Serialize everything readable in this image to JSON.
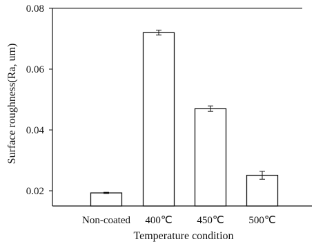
{
  "chart_data": {
    "type": "bar",
    "categories": [
      "Non-coated",
      "400℃",
      "450℃",
      "500℃"
    ],
    "values": [
      0.0193,
      0.072,
      0.047,
      0.0251
    ],
    "errors": [
      0.0002,
      0.0008,
      0.0009,
      0.0013
    ],
    "xlabel": "Temperature condition",
    "ylabel": "Surface roughness(Ra, um)",
    "ylim": [
      0.015,
      0.08
    ],
    "yticks": [
      0.02,
      0.04,
      0.06,
      0.08
    ],
    "ytick_labels": [
      "0.02",
      "0.04",
      "0.06",
      "0.08"
    ],
    "bar_fill": "#ffffff",
    "bar_stroke": "#111111",
    "grid": false
  }
}
